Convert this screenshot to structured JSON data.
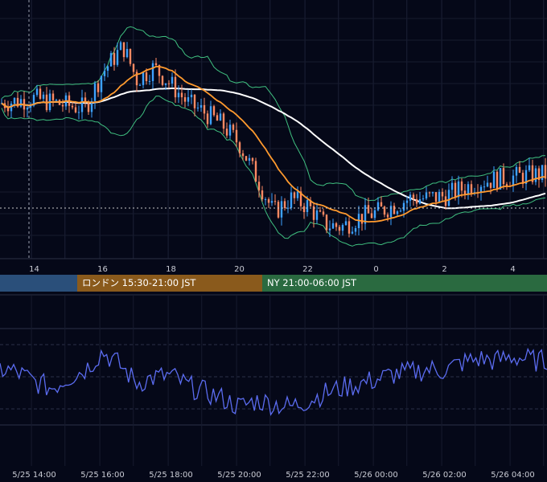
{
  "chart_data": [
    {
      "type": "candlestick",
      "xlabel": "",
      "ylabel": "",
      "x_ticks": [
        "14",
        "16",
        "18",
        "20",
        "22",
        "0",
        "2",
        "4"
      ],
      "grid": true,
      "overlays": [
        "bollinger-bands",
        "moving-average-orange",
        "moving-average-white"
      ],
      "colors": {
        "up": "#3da2ff",
        "down": "#ff8a63",
        "ma_fast": "#ff9a2e",
        "ma_slow": "#ffffff",
        "bands": "#3fbf7f",
        "background": "#050818"
      },
      "sessions": [
        {
          "label": "",
          "color": "#2a4f7a"
        },
        {
          "label": "ロンドン 15:30-21:00 JST",
          "color": "#8a5a1c"
        },
        {
          "label": "NY 21:00-06:00 JST",
          "color": "#2a6a40"
        }
      ],
      "close_path": [
        [
          13.0,
          0.64
        ],
        [
          14.0,
          0.66
        ],
        [
          15.0,
          0.63
        ],
        [
          15.5,
          0.62
        ],
        [
          16.0,
          0.77
        ],
        [
          16.6,
          0.88
        ],
        [
          17.0,
          0.74
        ],
        [
          17.5,
          0.79
        ],
        [
          18.0,
          0.72
        ],
        [
          18.5,
          0.64
        ],
        [
          19.0,
          0.6
        ],
        [
          19.5,
          0.55
        ],
        [
          20.0,
          0.47
        ],
        [
          20.5,
          0.33
        ],
        [
          21.0,
          0.18
        ],
        [
          21.5,
          0.24
        ],
        [
          22.0,
          0.21
        ],
        [
          22.5,
          0.13
        ],
        [
          23.0,
          0.12
        ],
        [
          23.5,
          0.16
        ],
        [
          24.0,
          0.18
        ],
        [
          24.5,
          0.21
        ],
        [
          25.0,
          0.24
        ],
        [
          25.5,
          0.24
        ],
        [
          26.0,
          0.25
        ],
        [
          26.5,
          0.28
        ],
        [
          27.0,
          0.31
        ],
        [
          27.5,
          0.32
        ],
        [
          28.0,
          0.33
        ],
        [
          28.7,
          0.34
        ]
      ]
    },
    {
      "type": "line",
      "xlabel": "",
      "ylabel": "",
      "x_ticks": [
        "5/25 14:00",
        "5/25 16:00",
        "5/25 18:00",
        "5/25 20:00",
        "5/25 22:00",
        "5/26 00:00",
        "5/26 02:00",
        "5/26 04:00"
      ],
      "series": [
        {
          "color": "#5b6cf0",
          "points": [
            [
              13.0,
              0.58
            ],
            [
              13.5,
              0.55
            ],
            [
              14.0,
              0.46
            ],
            [
              14.5,
              0.4
            ],
            [
              15.0,
              0.5
            ],
            [
              15.5,
              0.58
            ],
            [
              16.0,
              0.75
            ],
            [
              16.5,
              0.62
            ],
            [
              17.0,
              0.45
            ],
            [
              17.5,
              0.5
            ],
            [
              18.0,
              0.52
            ],
            [
              18.5,
              0.42
            ],
            [
              19.0,
              0.36
            ],
            [
              19.5,
              0.3
            ],
            [
              20.0,
              0.22
            ],
            [
              20.5,
              0.28
            ],
            [
              21.0,
              0.25
            ],
            [
              21.5,
              0.22
            ],
            [
              22.0,
              0.28
            ],
            [
              22.5,
              0.35
            ],
            [
              23.0,
              0.4
            ],
            [
              23.5,
              0.44
            ],
            [
              24.0,
              0.48
            ],
            [
              24.5,
              0.53
            ],
            [
              25.0,
              0.55
            ],
            [
              25.5,
              0.58
            ],
            [
              26.0,
              0.57
            ],
            [
              26.5,
              0.64
            ],
            [
              27.0,
              0.68
            ],
            [
              27.5,
              0.66
            ],
            [
              28.0,
              0.7
            ],
            [
              28.7,
              0.66
            ]
          ]
        }
      ]
    }
  ]
}
